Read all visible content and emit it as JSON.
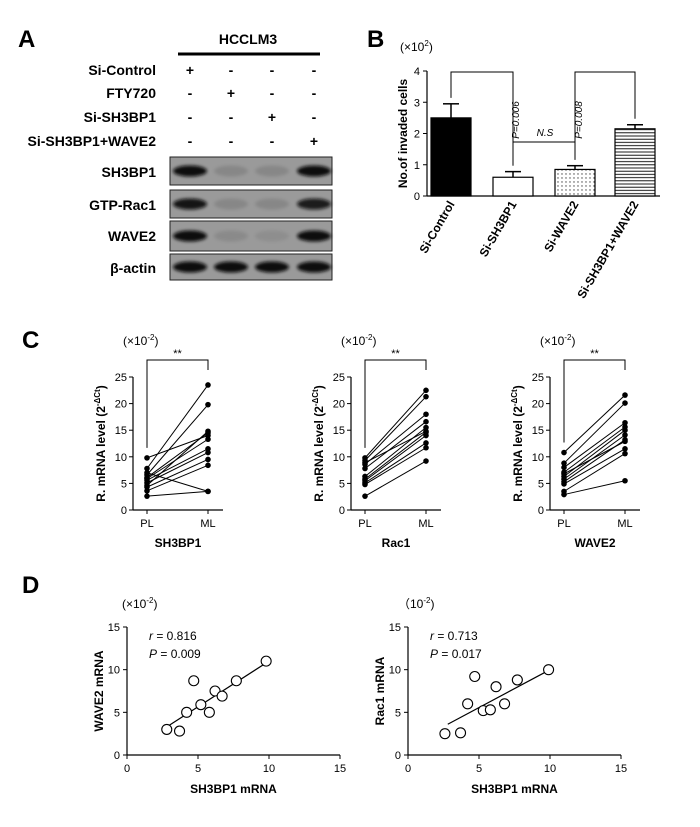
{
  "panels": {
    "A": "A",
    "B": "B",
    "C": "C",
    "D": "D"
  },
  "panel_a": {
    "cell_line": "HCCLM3",
    "conditions": [
      {
        "label": "Si-Control",
        "marks": [
          "+",
          "-",
          "-",
          "-"
        ]
      },
      {
        "label": "FTY720",
        "marks": [
          "-",
          "+",
          "-",
          "-"
        ]
      },
      {
        "label": "Si-SH3BP1",
        "marks": [
          "-",
          "-",
          "+",
          "-"
        ]
      },
      {
        "label": "Si-SH3BP1+WAVE2",
        "marks": [
          "-",
          "-",
          "-",
          "+"
        ]
      }
    ],
    "blots": [
      {
        "label": "SH3BP1",
        "intensity": [
          1.0,
          0.12,
          0.12,
          1.0
        ]
      },
      {
        "label": "GTP-Rac1",
        "intensity": [
          0.95,
          0.12,
          0.12,
          0.9
        ]
      },
      {
        "label": "WAVE2",
        "intensity": [
          1.0,
          0.1,
          0.05,
          1.0
        ]
      },
      {
        "label": "β-actin",
        "intensity": [
          1.0,
          1.0,
          1.0,
          1.0
        ]
      }
    ]
  },
  "chart_data": [
    {
      "id": "B",
      "type": "bar",
      "multiplier": "(×10",
      "multiplier_exp": "2",
      "multiplier_close": ")",
      "ylabel": "No.of invaded cells",
      "ylim": [
        0,
        4
      ],
      "yticks": [
        "0",
        "1",
        "2",
        "3",
        "4"
      ],
      "categories": [
        "Si-Control",
        "Si-SH3BP1",
        "Si-WAVE2",
        "Si-SH3BP1+WAVE2"
      ],
      "values": [
        2.5,
        0.6,
        0.85,
        2.15
      ],
      "errors": [
        0.45,
        0.18,
        0.12,
        0.13
      ],
      "fills": [
        "solid",
        "white",
        "dotted",
        "striped"
      ],
      "annotations": [
        {
          "text": "P=0.006",
          "from": 0,
          "to": 1
        },
        {
          "text": "N.S",
          "from": 1,
          "to": 2
        },
        {
          "text": "P=0.008",
          "from": 2,
          "to": 3
        }
      ]
    },
    {
      "id": "C1",
      "type": "paired-line",
      "multiplier": "(×10",
      "multiplier_exp": "-2",
      "multiplier_close": ")",
      "ylabel": "R. mRNA  level  (2",
      "ylabel_exp": "-ΔCt",
      "ylabel_close": ")",
      "xlabel": "SH3BP1",
      "categories": [
        "PL",
        "ML"
      ],
      "ylim": [
        0,
        25
      ],
      "yticks": [
        "0",
        "5",
        "10",
        "15",
        "20",
        "25"
      ],
      "significance": "**",
      "pairs": [
        [
          9.8,
          14.0
        ],
        [
          7.8,
          23.5
        ],
        [
          6.6,
          19.8
        ],
        [
          6.1,
          14.5
        ],
        [
          5.6,
          11.5
        ],
        [
          5.1,
          10.8
        ],
        [
          4.6,
          14.8
        ],
        [
          4.3,
          9.5
        ],
        [
          3.6,
          8.4
        ],
        [
          2.6,
          3.5
        ],
        [
          5.9,
          13.3
        ],
        [
          7.0,
          3.5
        ]
      ]
    },
    {
      "id": "C2",
      "type": "paired-line",
      "multiplier": "(×10",
      "multiplier_exp": "-2",
      "multiplier_close": ")",
      "ylabel": "R. mRNA  level  (2",
      "ylabel_exp": "-ΔCt",
      "ylabel_close": ")",
      "xlabel": "Rac1",
      "categories": [
        "PL",
        "ML"
      ],
      "ylim": [
        0,
        25
      ],
      "yticks": [
        "0",
        "5",
        "10",
        "15",
        "20",
        "25"
      ],
      "significance": "**",
      "pairs": [
        [
          9.8,
          22.5
        ],
        [
          9.3,
          21.3
        ],
        [
          8.6,
          18.0
        ],
        [
          7.8,
          16.6
        ],
        [
          6.3,
          15.5
        ],
        [
          5.8,
          14.6
        ],
        [
          5.5,
          14.0
        ],
        [
          5.1,
          12.6
        ],
        [
          4.8,
          11.7
        ],
        [
          2.6,
          9.2
        ],
        [
          8.9,
          14.8
        ]
      ]
    },
    {
      "id": "C3",
      "type": "paired-line",
      "multiplier": "(×10",
      "multiplier_exp": "-2",
      "multiplier_close": ")",
      "ylabel": "R. mRNA  level  (2",
      "ylabel_exp": "-ΔCt",
      "ylabel_close": ")",
      "xlabel": "WAVE2",
      "categories": [
        "PL",
        "ML"
      ],
      "ylim": [
        0,
        25
      ],
      "yticks": [
        "0",
        "5",
        "10",
        "15",
        "20",
        "25"
      ],
      "significance": "**",
      "pairs": [
        [
          10.8,
          21.6
        ],
        [
          8.8,
          20.1
        ],
        [
          8.0,
          16.4
        ],
        [
          7.1,
          15.6
        ],
        [
          6.3,
          15.0
        ],
        [
          5.8,
          14.1
        ],
        [
          5.3,
          13.2
        ],
        [
          4.9,
          11.5
        ],
        [
          3.5,
          10.6
        ],
        [
          2.9,
          5.5
        ],
        [
          6.8,
          12.9
        ]
      ]
    },
    {
      "id": "D1",
      "type": "scatter",
      "multiplier": "(×10",
      "multiplier_exp": "-2",
      "multiplier_close": ")",
      "xlabel": "SH3BP1 mRNA",
      "ylabel": "WAVE2 mRNA",
      "xlim": [
        0,
        15
      ],
      "ylim": [
        0,
        15
      ],
      "xticks": [
        "0",
        "5",
        "10",
        "15"
      ],
      "yticks": [
        "0",
        "5",
        "10",
        "15"
      ],
      "r_label": "r",
      "r_value": " = 0.816",
      "p_label": "P",
      "p_value": " = 0.009",
      "points": [
        [
          2.8,
          3.0
        ],
        [
          3.7,
          2.8
        ],
        [
          4.2,
          5.0
        ],
        [
          4.7,
          8.7
        ],
        [
          5.2,
          5.9
        ],
        [
          5.8,
          5.0
        ],
        [
          6.2,
          7.5
        ],
        [
          6.7,
          6.9
        ],
        [
          7.7,
          8.7
        ],
        [
          9.8,
          11.0
        ]
      ],
      "fit": [
        [
          2.8,
          3.3
        ],
        [
          10.0,
          11.0
        ]
      ]
    },
    {
      "id": "D2",
      "type": "scatter",
      "multiplier": "（10",
      "multiplier_exp": "-2",
      "multiplier_close": ")",
      "xlabel": "SH3BP1 mRNA",
      "ylabel": "Rac1 mRNA",
      "xlim": [
        0,
        15
      ],
      "ylim": [
        0,
        15
      ],
      "xticks": [
        "0",
        "5",
        "10",
        "15"
      ],
      "yticks": [
        "0",
        "5",
        "10",
        "15"
      ],
      "r_label": "r",
      "r_value": " = 0.713",
      "p_label": "P",
      "p_value": " = 0.017",
      "points": [
        [
          2.6,
          2.5
        ],
        [
          3.7,
          2.6
        ],
        [
          4.2,
          6.0
        ],
        [
          4.7,
          9.2
        ],
        [
          5.3,
          5.2
        ],
        [
          5.8,
          5.3
        ],
        [
          6.2,
          8.0
        ],
        [
          6.8,
          6.0
        ],
        [
          7.7,
          8.8
        ],
        [
          9.9,
          10.0
        ]
      ],
      "fit": [
        [
          2.8,
          3.6
        ],
        [
          10.0,
          10.0
        ]
      ]
    }
  ]
}
